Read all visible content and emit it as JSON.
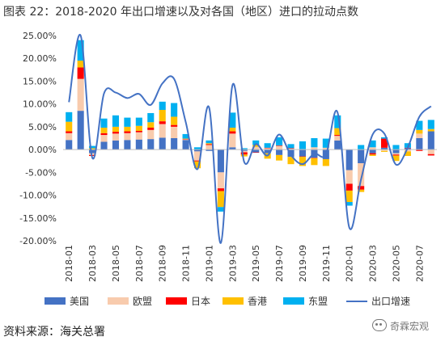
{
  "title": "图表 22：2018-2020 年出口增速以及对各国（地区）进口的拉动点数",
  "source": "资料来源：海关总署",
  "watermark": "奇霖宏观",
  "chart_data": {
    "type": "bar",
    "stacked": true,
    "categories": [
      "2018-01",
      "2018-02",
      "2018-03",
      "2018-04",
      "2018-05",
      "2018-06",
      "2018-07",
      "2018-08",
      "2018-09",
      "2018-10",
      "2018-11",
      "2018-12",
      "2019-01",
      "2019-02",
      "2019-03",
      "2019-04",
      "2019-05",
      "2019-06",
      "2019-07",
      "2019-08",
      "2019-09",
      "2019-10",
      "2019-11",
      "2019-12",
      "2020-01",
      "2020-02",
      "2020-03",
      "2020-04",
      "2020-05",
      "2020-06",
      "2020-07",
      "2020-08"
    ],
    "x_tick_labels": [
      "2018-01",
      "2018-03",
      "2018-05",
      "2018-07",
      "2018-09",
      "2018-11",
      "2019-01",
      "2019-03",
      "2019-05",
      "2019-07",
      "2019-09",
      "2019-11",
      "2020-01",
      "2020-03",
      "2020-05",
      "2020-07"
    ],
    "ylim": [
      -0.2,
      0.25
    ],
    "y_ticks": [
      "-20.00%",
      "-15.00%",
      "-10.00%",
      "-5.00%",
      "0.00%",
      "5.00%",
      "10.00%",
      "15.00%",
      "20.00%",
      "25.00%"
    ],
    "grid": false,
    "legend_position": "bottom",
    "series": [
      {
        "name": "美国",
        "color": "#4472c4",
        "kind": "bar",
        "values": [
          0.021,
          0.085,
          -0.008,
          0.017,
          0.02,
          0.021,
          0.022,
          0.023,
          0.026,
          0.025,
          0.021,
          -0.004,
          -0.003,
          -0.05,
          0.005,
          -0.003,
          -0.006,
          -0.008,
          -0.012,
          -0.016,
          -0.015,
          -0.018,
          -0.021,
          0.02,
          -0.045,
          -0.03,
          -0.008,
          0.004,
          -0.008,
          0.003,
          0.025,
          0.04
        ]
      },
      {
        "name": "欧盟",
        "color": "#f8cbad",
        "kind": "bar",
        "values": [
          0.015,
          0.07,
          -0.004,
          0.015,
          0.015,
          0.015,
          0.016,
          0.02,
          0.03,
          0.025,
          0.001,
          -0.02,
          0.01,
          -0.035,
          0.03,
          -0.003,
          0.006,
          0.003,
          0.008,
          0.002,
          0.001,
          0.005,
          0.004,
          0.01,
          -0.03,
          -0.05,
          0.005,
          -0.003,
          -0.003,
          -0.004,
          0.01,
          -0.01
        ]
      },
      {
        "name": "日本",
        "color": "#ff0000",
        "kind": "bar",
        "values": [
          0.004,
          0.025,
          -0.002,
          0.004,
          0.004,
          0.004,
          0.003,
          0.005,
          0.006,
          0.004,
          0.001,
          -0.002,
          0.002,
          -0.006,
          0.005,
          -0.005,
          -0.001,
          0.001,
          0.001,
          0.001,
          -0.001,
          -0.001,
          0.0,
          0.002,
          -0.015,
          -0.008,
          -0.003,
          0.02,
          -0.002,
          0.001,
          -0.003,
          -0.003
        ]
      },
      {
        "name": "香港",
        "color": "#ffc000",
        "kind": "bar",
        "values": [
          0.021,
          0.015,
          0.003,
          0.012,
          0.011,
          0.01,
          0.011,
          0.012,
          0.025,
          0.018,
          0.001,
          -0.015,
          0.002,
          -0.035,
          0.008,
          -0.004,
          0.004,
          -0.012,
          -0.012,
          -0.016,
          -0.02,
          -0.015,
          -0.015,
          0.015,
          -0.025,
          -0.005,
          -0.003,
          -0.002,
          -0.012,
          -0.01,
          0.008,
          0.005
        ]
      },
      {
        "name": "东盟",
        "color": "#00b0f0",
        "kind": "bar",
        "values": [
          0.021,
          0.045,
          0.005,
          0.02,
          0.025,
          0.02,
          0.018,
          0.02,
          0.018,
          0.03,
          0.01,
          0.005,
          0.006,
          -0.01,
          0.033,
          0.003,
          0.01,
          0.01,
          0.018,
          0.009,
          0.017,
          0.02,
          0.02,
          0.028,
          -0.008,
          0.01,
          0.015,
          0.003,
          0.01,
          0.01,
          0.02,
          0.02
        ]
      },
      {
        "name": "出口增速",
        "color": "#4472c4",
        "kind": "line",
        "values": [
          0.104,
          0.25,
          -0.018,
          0.123,
          0.125,
          0.113,
          0.122,
          0.098,
          0.145,
          0.155,
          0.06,
          -0.043,
          0.092,
          -0.205,
          0.141,
          -0.027,
          0.012,
          -0.013,
          0.033,
          -0.012,
          -0.032,
          -0.009,
          -0.011,
          0.081,
          -0.171,
          -0.066,
          0.033,
          0.035,
          -0.033,
          0.004,
          0.072,
          0.095
        ]
      }
    ]
  }
}
